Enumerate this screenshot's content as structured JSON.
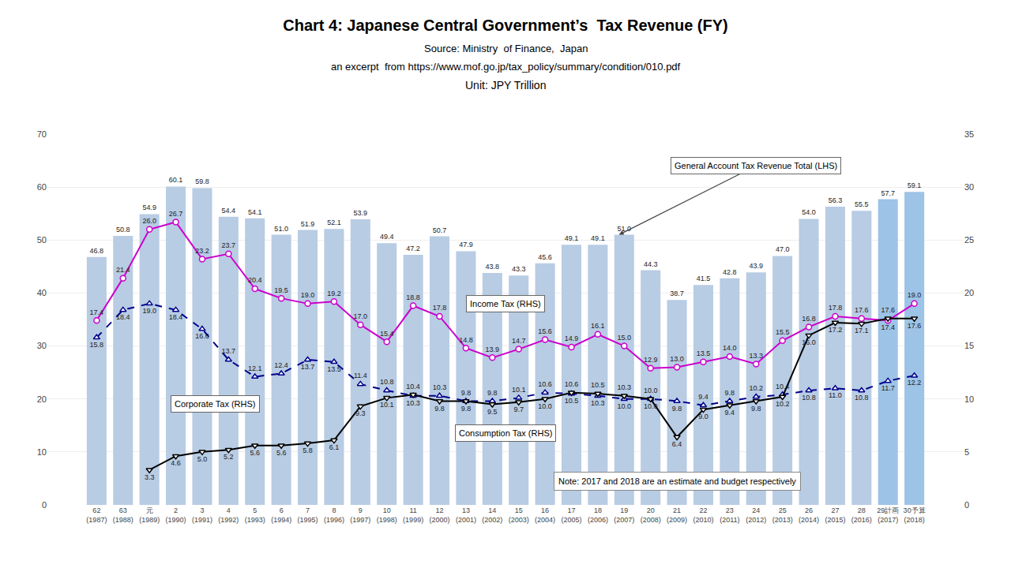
{
  "chart_data": {
    "type": "bar",
    "title": "Chart 4: Japanese Central Government’s  Tax Revenue (FY)",
    "subtitle": [
      "Source: Ministry  of Finance,  Japan",
      "an excerpt  from https://www.mof.go.jp/tax_policy/summary/condition/010.pdf",
      "Unit: JPY Trillion"
    ],
    "annotations": [
      "Note: 2017 and 2018 are an estimate and budget respectively"
    ],
    "categories": [
      "62\n(1987)",
      "63\n(1988)",
      "元\n(1989)",
      "2\n(1990)",
      "3\n(1991)",
      "4\n(1992)",
      "5\n(1993)",
      "6\n(1994)",
      "7\n(1995)",
      "8\n(1996)",
      "9\n(1997)",
      "10\n(1998)",
      "11\n(1999)",
      "12\n(2000)",
      "13\n(2001)",
      "14\n(2002)",
      "15\n(2003)",
      "16\n(2004)",
      "17\n(2005)",
      "18\n(2006)",
      "19\n(2007)",
      "20\n(2008)",
      "21\n(2009)",
      "22\n(2010)",
      "23\n(2011)",
      "24\n(2012)",
      "25\n(2013)",
      "26\n(2014)",
      "27\n(2015)",
      "28\n(2016)",
      "29計画\n(2017)",
      "30予算\n(2018)"
    ],
    "ylim": [
      0,
      70
    ],
    "yticks": [
      0,
      10,
      20,
      30,
      40,
      50,
      60,
      70
    ],
    "y2lim": [
      0,
      35
    ],
    "y2ticks": [
      0,
      5,
      10,
      15,
      20,
      25,
      30,
      35
    ],
    "grid": true,
    "data_labels": true,
    "series": [
      {
        "name": "General Account Tax Revenue Total (LHS)",
        "type": "bar",
        "colors": [
          "#b8cce4",
          "#b8cce4",
          "#b8cce4",
          "#b8cce4",
          "#b8cce4",
          "#b8cce4",
          "#b8cce4",
          "#b8cce4",
          "#b8cce4",
          "#b8cce4",
          "#b8cce4",
          "#b8cce4",
          "#b8cce4",
          "#b8cce4",
          "#b8cce4",
          "#b8cce4",
          "#b8cce4",
          "#b8cce4",
          "#b8cce4",
          "#b8cce4",
          "#b8cce4",
          "#b8cce4",
          "#b8cce4",
          "#b8cce4",
          "#b8cce4",
          "#b8cce4",
          "#b8cce4",
          "#b8cce4",
          "#b8cce4",
          "#b8cce4",
          "#9dc3e6",
          "#9dc3e6"
        ],
        "values": [
          46.8,
          50.8,
          54.9,
          60.1,
          59.8,
          54.4,
          54.1,
          51.0,
          51.9,
          52.1,
          53.9,
          49.4,
          47.2,
          50.7,
          47.9,
          43.8,
          43.3,
          45.6,
          49.1,
          49.1,
          51.0,
          44.3,
          38.7,
          41.5,
          42.8,
          43.9,
          47.0,
          54.0,
          56.3,
          55.5,
          57.7,
          59.1
        ],
        "value_labels": [
          "46.8",
          "50.8",
          "54.9",
          "60.1",
          "59.8",
          "54.4",
          "54.1",
          "51.0",
          "51.9",
          "52.1",
          "53.9",
          "49.4",
          "47.2",
          "50.7",
          "47.9",
          "43.8",
          "43.3",
          "45.6",
          "49.1",
          "49.1",
          "51.0",
          "44.3",
          "38.7",
          "41.5",
          "42.8",
          "43.9",
          "47.0",
          "54.0",
          "56.3",
          "55.5",
          "57.7",
          "59.1"
        ]
      },
      {
        "name": "Income Tax (RHS)",
        "type": "line",
        "axis": "y2",
        "color": "#cc00cc",
        "marker": "circle",
        "line_style": "solid",
        "values": [
          17.4,
          21.4,
          26.0,
          26.7,
          23.2,
          23.7,
          20.4,
          19.5,
          19.0,
          19.2,
          17.0,
          15.4,
          18.8,
          17.8,
          14.8,
          13.9,
          14.7,
          15.6,
          14.9,
          16.1,
          15.0,
          12.9,
          13.0,
          13.5,
          14.0,
          13.3,
          15.5,
          16.8,
          17.8,
          17.6,
          17.4,
          19.0
        ],
        "value_labels": [
          "17.4",
          "21.4",
          "26.0",
          "26.7",
          "23.2",
          "23.7",
          "20.4",
          "19.5",
          "19.0",
          "19.2",
          "17.0",
          "15.4",
          "18.8",
          "17.8",
          "14.8",
          "13.9",
          "14.7",
          "15.6",
          "14.9",
          "16.1",
          "15.0",
          "12.9",
          "13.0",
          "13.5",
          "14.0",
          "13.3",
          "15.5",
          "16.8",
          "17.8",
          "17.6",
          "17.4",
          "19.0"
        ]
      },
      {
        "name": "Corporate Tax (RHS)",
        "type": "line",
        "axis": "y2",
        "color": "#00008b",
        "marker": "triangle-up",
        "line_style": "dash",
        "values": [
          15.8,
          18.4,
          19.0,
          18.4,
          16.6,
          13.7,
          12.1,
          12.4,
          13.7,
          13.5,
          11.4,
          10.8,
          10.3,
          10.3,
          9.8,
          9.8,
          10.1,
          10.6,
          10.5,
          10.3,
          10.0,
          10.0,
          9.8,
          9.4,
          9.8,
          10.2,
          10.4,
          10.8,
          11.0,
          10.8,
          11.7,
          12.2
        ],
        "value_labels": [
          "15.8",
          "18.4",
          "19.0",
          "18.4",
          "16.6",
          "13.7",
          "12.1",
          "12.4",
          "13.7",
          "13.5",
          "11.4",
          "10.8",
          "10.3",
          "10.3",
          "9.8",
          "9.8",
          "10.1",
          "10.6",
          "10.5",
          "10.3",
          "10.0",
          "10.0",
          "9.8",
          "9.4",
          "9.8",
          "10.2",
          "10.4",
          "10.8",
          "11.0",
          "10.8",
          "11.7",
          "12.2"
        ]
      },
      {
        "name": "Consumption Tax (RHS)",
        "type": "line",
        "axis": "y2",
        "color": "#000000",
        "marker": "triangle-down",
        "line_style": "solid",
        "values": [
          null,
          null,
          3.3,
          4.6,
          5.0,
          5.2,
          5.6,
          5.6,
          5.8,
          6.1,
          9.3,
          10.1,
          10.4,
          9.8,
          9.8,
          9.5,
          9.7,
          10.0,
          10.6,
          10.5,
          10.3,
          10.0,
          6.4,
          9.0,
          9.4,
          9.8,
          10.2,
          16.0,
          17.2,
          17.1,
          17.6,
          17.6
        ],
        "value_labels": [
          null,
          null,
          "3.3",
          "4.6",
          "5.0",
          "5.2",
          "5.6",
          "5.6",
          "5.8",
          "6.1",
          "9.3",
          "10.1",
          "10.4",
          "9.8",
          "9.8",
          "9.5",
          "9.7",
          "10.0",
          "10.6",
          "10.5",
          "10.3",
          "10.0",
          "6.4",
          "9.0",
          "9.4",
          "9.8",
          "10.2",
          "16.0",
          "17.2",
          "17.1",
          "17.6",
          "17.6"
        ]
      }
    ]
  }
}
